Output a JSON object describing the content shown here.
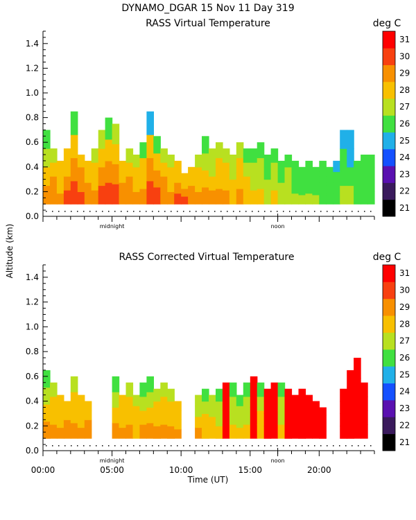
{
  "header": {
    "title": "DYNAMO_DGAR  15 Nov 11 Day 319"
  },
  "shared": {
    "ylabel": "Altitude (km)",
    "xlabel": "Time (UT)",
    "midnight_label": "midnight",
    "noon_label": "noon",
    "colorbar_unit": "deg C"
  },
  "colors": {
    "21": "#000000",
    "22": "#3a1a5c",
    "23": "#5a10b0",
    "24": "#1450ff",
    "25": "#20b0e8",
    "26": "#40e040",
    "27": "#b8e020",
    "28": "#f8c000",
    "29": "#f89000",
    "30": "#f84010",
    "31": "#ff0000"
  },
  "chart_data": [
    {
      "type": "heatmap",
      "title": "RASS Virtual Temperature",
      "xlabel": "",
      "ylabel": "Altitude (km)",
      "x_range_hours_ut": [
        0,
        24
      ],
      "ylim_km": [
        0,
        1.5
      ],
      "x_ticks": [],
      "y_ticks": [
        "0.0",
        "0.2",
        "0.4",
        "0.6",
        "0.8",
        "1.0",
        "1.2",
        "1.4"
      ],
      "midnight_hour_ut": 5,
      "noon_hour_ut": 17,
      "colorbar": {
        "unit": "deg C",
        "levels": [
          21,
          22,
          23,
          24,
          25,
          26,
          27,
          28,
          29,
          30,
          31
        ]
      },
      "columns": [
        {
          "t": 0.0,
          "top": 0.7,
          "temps": [
            29,
            28,
            27,
            26
          ]
        },
        {
          "t": 0.5,
          "top": 0.55,
          "temps": [
            29,
            29,
            28,
            27
          ]
        },
        {
          "t": 1.0,
          "top": 0.45,
          "temps": [
            29,
            28,
            28,
            28
          ]
        },
        {
          "t": 1.5,
          "top": 0.55,
          "temps": [
            30,
            29,
            28,
            28
          ]
        },
        {
          "t": 2.0,
          "top": 0.85,
          "temps": [
            30,
            29,
            28,
            26
          ]
        },
        {
          "t": 2.5,
          "top": 0.5,
          "temps": [
            30,
            29,
            29,
            28
          ]
        },
        {
          "t": 3.0,
          "top": 0.45,
          "temps": [
            29,
            29,
            28,
            28
          ]
        },
        {
          "t": 3.5,
          "top": 0.55,
          "temps": [
            29,
            28,
            28,
            27
          ]
        },
        {
          "t": 4.0,
          "top": 0.7,
          "temps": [
            30,
            29,
            28,
            27
          ]
        },
        {
          "t": 4.5,
          "top": 0.8,
          "temps": [
            30,
            29,
            28,
            26
          ]
        },
        {
          "t": 5.0,
          "top": 0.75,
          "temps": [
            30,
            29,
            28,
            27
          ]
        },
        {
          "t": 5.5,
          "top": 0.45,
          "temps": [
            29,
            29,
            28,
            28
          ]
        },
        {
          "t": 6.0,
          "top": 0.55,
          "temps": [
            29,
            29,
            28,
            27
          ]
        },
        {
          "t": 6.5,
          "top": 0.5,
          "temps": [
            29,
            28,
            28,
            27
          ]
        },
        {
          "t": 7.0,
          "top": 0.6,
          "temps": [
            29,
            28,
            28,
            26
          ]
        },
        {
          "t": 7.5,
          "top": 0.85,
          "temps": [
            30,
            29,
            28,
            25
          ]
        },
        {
          "t": 8.0,
          "top": 0.65,
          "temps": [
            30,
            29,
            28,
            26
          ]
        },
        {
          "t": 8.5,
          "top": 0.55,
          "temps": [
            29,
            29,
            28,
            27
          ]
        },
        {
          "t": 9.0,
          "top": 0.5,
          "temps": [
            29,
            28,
            28,
            27
          ]
        },
        {
          "t": 9.5,
          "top": 0.45,
          "temps": [
            30,
            29,
            28,
            28
          ]
        },
        {
          "t": 10.0,
          "top": 0.35,
          "temps": [
            30,
            29,
            28,
            28
          ]
        },
        {
          "t": 10.5,
          "top": 0.4,
          "temps": [
            29,
            29,
            28,
            28
          ]
        },
        {
          "t": 11.0,
          "top": 0.5,
          "temps": [
            29,
            28,
            28,
            27
          ]
        },
        {
          "t": 11.5,
          "top": 0.65,
          "temps": [
            29,
            28,
            27,
            26
          ]
        },
        {
          "t": 12.0,
          "top": 0.55,
          "temps": [
            29,
            28,
            27,
            27
          ]
        },
        {
          "t": 12.5,
          "top": 0.6,
          "temps": [
            29,
            28,
            28,
            27
          ]
        },
        {
          "t": 13.0,
          "top": 0.55,
          "temps": [
            29,
            28,
            28,
            27
          ]
        },
        {
          "t": 13.5,
          "top": 0.5,
          "temps": [
            28,
            28,
            27,
            27
          ]
        },
        {
          "t": 14.0,
          "top": 0.6,
          "temps": [
            29,
            28,
            28,
            27
          ]
        },
        {
          "t": 14.5,
          "top": 0.55,
          "temps": [
            28,
            28,
            27,
            26
          ]
        },
        {
          "t": 15.0,
          "top": 0.55,
          "temps": [
            28,
            27,
            27,
            26
          ]
        },
        {
          "t": 15.5,
          "top": 0.6,
          "temps": [
            28,
            27,
            27,
            26
          ]
        },
        {
          "t": 16.0,
          "top": 0.5,
          "temps": [
            27,
            27,
            26,
            26
          ]
        },
        {
          "t": 16.5,
          "top": 0.55,
          "temps": [
            28,
            27,
            27,
            26
          ]
        },
        {
          "t": 17.0,
          "top": 0.45,
          "temps": [
            27,
            27,
            26,
            26
          ]
        },
        {
          "t": 17.5,
          "top": 0.5,
          "temps": [
            27,
            27,
            27,
            26
          ]
        },
        {
          "t": 18.0,
          "top": 0.45,
          "temps": [
            27,
            26,
            26,
            26
          ]
        },
        {
          "t": 18.5,
          "top": 0.4,
          "temps": [
            27,
            26,
            26,
            26
          ]
        },
        {
          "t": 19.0,
          "top": 0.45,
          "temps": [
            27,
            26,
            26,
            26
          ]
        },
        {
          "t": 19.5,
          "top": 0.4,
          "temps": [
            27,
            26,
            26,
            26
          ]
        },
        {
          "t": 20.0,
          "top": 0.45,
          "temps": [
            26,
            26,
            26,
            26
          ]
        },
        {
          "t": 20.5,
          "top": 0.4,
          "temps": [
            26,
            26,
            26,
            26
          ]
        },
        {
          "t": 21.0,
          "top": 0.45,
          "temps": [
            26,
            26,
            26,
            25
          ]
        },
        {
          "t": 21.5,
          "top": 0.7,
          "temps": [
            27,
            26,
            26,
            25
          ]
        },
        {
          "t": 22.0,
          "top": 0.7,
          "temps": [
            27,
            26,
            25,
            25
          ]
        },
        {
          "t": 22.5,
          "top": 0.45,
          "temps": [
            26,
            26,
            26,
            26
          ]
        },
        {
          "t": 23.0,
          "top": 0.5,
          "temps": [
            26,
            26,
            26,
            26
          ]
        },
        {
          "t": 23.5,
          "top": 0.5,
          "temps": [
            26,
            26,
            26,
            26
          ]
        }
      ]
    },
    {
      "type": "heatmap",
      "title": "RASS Corrected Virtual Temperature",
      "xlabel": "Time (UT)",
      "ylabel": "Altitude (km)",
      "x_range_hours_ut": [
        0,
        24
      ],
      "ylim_km": [
        0,
        1.5
      ],
      "x_ticks": [
        "00:00",
        "05:00",
        "10:00",
        "15:00",
        "20:00"
      ],
      "y_ticks": [
        "0.0",
        "0.2",
        "0.4",
        "0.6",
        "0.8",
        "1.0",
        "1.2",
        "1.4"
      ],
      "midnight_hour_ut": 5,
      "noon_hour_ut": 17,
      "colorbar": {
        "unit": "deg C",
        "levels": [
          21,
          22,
          23,
          24,
          25,
          26,
          27,
          28,
          29,
          30,
          31
        ]
      },
      "columns": [
        {
          "t": 0.0,
          "top": 0.65,
          "temps": [
            29,
            28,
            27,
            26
          ]
        },
        {
          "t": 0.5,
          "top": 0.55,
          "temps": [
            29,
            28,
            28,
            27
          ]
        },
        {
          "t": 1.0,
          "top": 0.45,
          "temps": [
            29,
            28,
            28,
            28
          ]
        },
        {
          "t": 1.5,
          "top": 0.4,
          "temps": [
            29,
            29,
            28,
            28
          ]
        },
        {
          "t": 2.0,
          "top": 0.6,
          "temps": [
            29,
            28,
            28,
            27
          ]
        },
        {
          "t": 2.5,
          "top": 0.45,
          "temps": [
            29,
            28,
            28,
            28
          ]
        },
        {
          "t": 3.0,
          "top": 0.4,
          "temps": [
            29,
            29,
            28,
            28
          ]
        },
        {
          "t": 5.0,
          "top": 0.6,
          "temps": [
            29,
            28,
            27,
            26
          ]
        },
        {
          "t": 5.5,
          "top": 0.45,
          "temps": [
            29,
            28,
            28,
            28
          ]
        },
        {
          "t": 6.0,
          "top": 0.55,
          "temps": [
            29,
            28,
            28,
            27
          ]
        },
        {
          "t": 6.5,
          "top": 0.45,
          "temps": [
            28,
            28,
            28,
            27
          ]
        },
        {
          "t": 7.0,
          "top": 0.55,
          "temps": [
            29,
            28,
            27,
            26
          ]
        },
        {
          "t": 7.5,
          "top": 0.6,
          "temps": [
            29,
            28,
            27,
            26
          ]
        },
        {
          "t": 8.0,
          "top": 0.5,
          "temps": [
            29,
            28,
            28,
            27
          ]
        },
        {
          "t": 8.5,
          "top": 0.55,
          "temps": [
            29,
            28,
            28,
            27
          ]
        },
        {
          "t": 9.0,
          "top": 0.5,
          "temps": [
            29,
            28,
            28,
            27
          ]
        },
        {
          "t": 9.5,
          "top": 0.4,
          "temps": [
            29,
            28,
            28,
            28
          ]
        },
        {
          "t": 11.0,
          "top": 0.45,
          "temps": [
            29,
            28,
            27,
            27
          ]
        },
        {
          "t": 11.5,
          "top": 0.5,
          "temps": [
            28,
            28,
            27,
            26
          ]
        },
        {
          "t": 12.0,
          "top": 0.45,
          "temps": [
            28,
            28,
            27,
            27
          ]
        },
        {
          "t": 12.5,
          "top": 0.5,
          "temps": [
            28,
            27,
            27,
            26
          ]
        },
        {
          "t": 13.0,
          "top": 0.55,
          "temps": [
            31,
            31,
            31,
            31
          ]
        },
        {
          "t": 13.5,
          "top": 0.55,
          "temps": [
            28,
            27,
            27,
            26
          ]
        },
        {
          "t": 14.0,
          "top": 0.45,
          "temps": [
            28,
            27,
            27,
            26
          ]
        },
        {
          "t": 14.5,
          "top": 0.55,
          "temps": [
            28,
            27,
            27,
            26
          ]
        },
        {
          "t": 15.0,
          "top": 0.6,
          "temps": [
            31,
            31,
            31,
            31
          ]
        },
        {
          "t": 15.5,
          "top": 0.55,
          "temps": [
            28,
            28,
            27,
            26
          ]
        },
        {
          "t": 16.0,
          "top": 0.5,
          "temps": [
            31,
            31,
            31,
            31
          ]
        },
        {
          "t": 16.5,
          "top": 0.55,
          "temps": [
            31,
            31,
            31,
            31
          ]
        },
        {
          "t": 17.0,
          "top": 0.55,
          "temps": [
            28,
            27,
            27,
            26
          ]
        },
        {
          "t": 17.5,
          "top": 0.5,
          "temps": [
            31,
            31,
            31,
            31
          ]
        },
        {
          "t": 18.0,
          "top": 0.45,
          "temps": [
            31,
            31,
            31,
            31
          ]
        },
        {
          "t": 18.5,
          "top": 0.5,
          "temps": [
            31,
            31,
            31,
            31
          ]
        },
        {
          "t": 19.0,
          "top": 0.45,
          "temps": [
            31,
            31,
            31,
            31
          ]
        },
        {
          "t": 19.5,
          "top": 0.4,
          "temps": [
            31,
            31,
            31,
            31
          ]
        },
        {
          "t": 20.0,
          "top": 0.35,
          "temps": [
            31,
            31,
            31,
            31
          ]
        },
        {
          "t": 21.5,
          "top": 0.5,
          "temps": [
            31,
            31,
            31,
            31
          ]
        },
        {
          "t": 22.0,
          "top": 0.65,
          "temps": [
            31,
            31,
            31,
            31
          ]
        },
        {
          "t": 22.5,
          "top": 0.75,
          "temps": [
            31,
            31,
            31,
            31
          ]
        },
        {
          "t": 23.0,
          "top": 0.55,
          "temps": [
            31,
            31,
            31,
            31
          ]
        }
      ]
    }
  ]
}
